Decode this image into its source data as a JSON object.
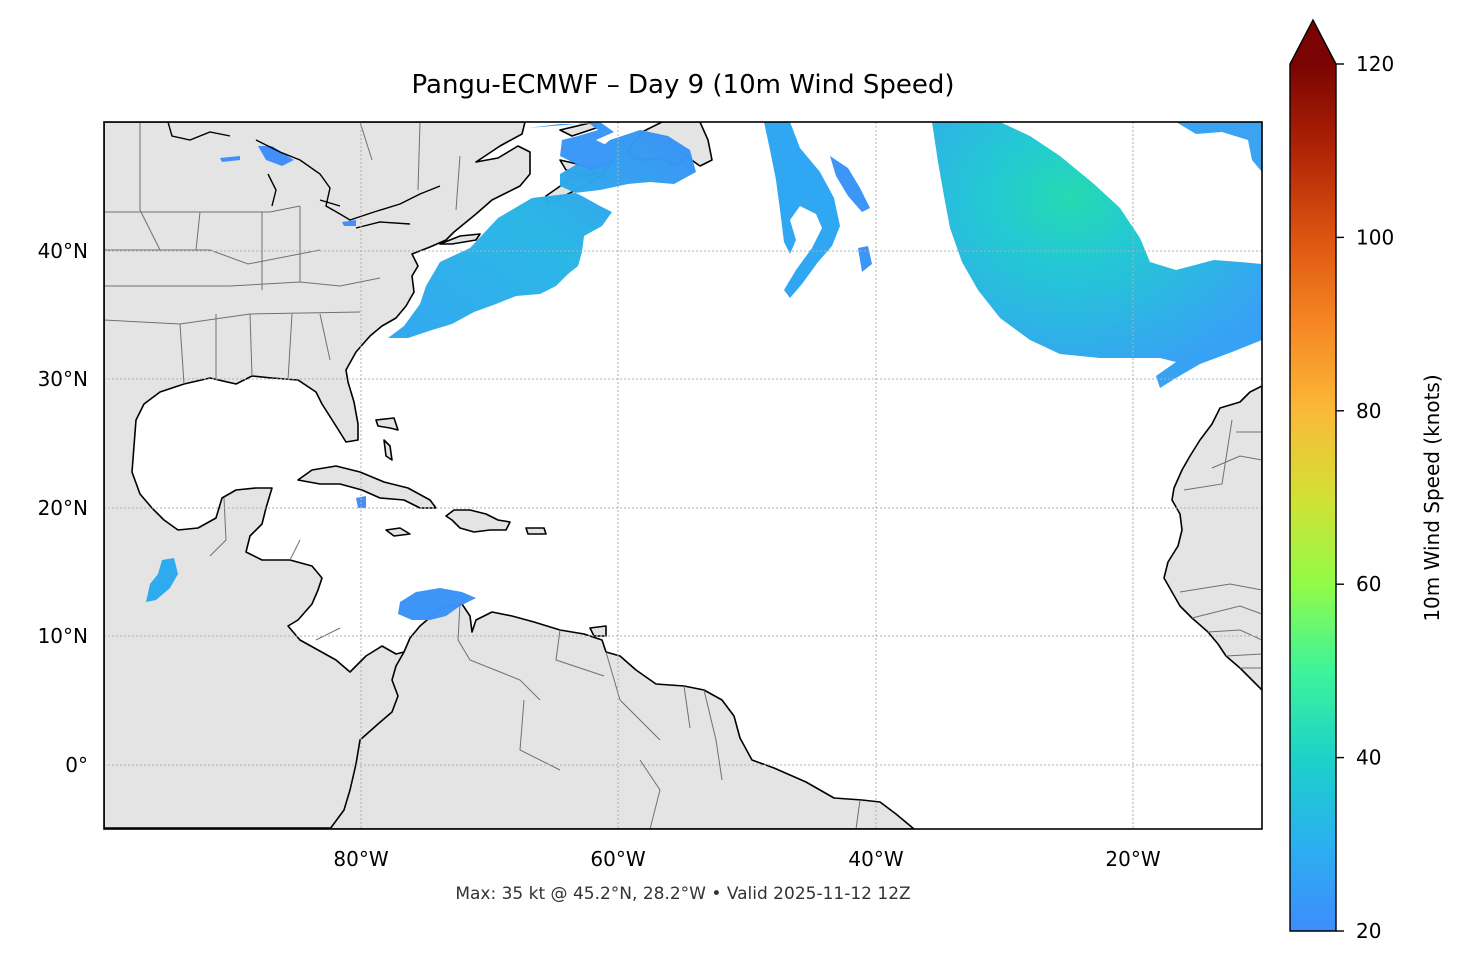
{
  "title": "Pangu-ECMWF – Day 9 (10m Wind Speed)",
  "footer": "Max: 35 kt @ 45.2°N, 28.2°W • Valid 2025-11-12 12Z",
  "map": {
    "extent": {
      "lon": [
        -100,
        -10
      ],
      "lat": [
        -5,
        50
      ]
    },
    "lon_ticks": [
      {
        "lon": -80,
        "label": "80°W"
      },
      {
        "lon": -60,
        "label": "60°W"
      },
      {
        "lon": -40,
        "label": "40°W"
      },
      {
        "lon": -20,
        "label": "20°W"
      }
    ],
    "lat_ticks": [
      {
        "lat": 40,
        "label": "40°N"
      },
      {
        "lat": 30,
        "label": "30°N"
      },
      {
        "lat": 20,
        "label": "20°N"
      },
      {
        "lat": 10,
        "label": "10°N"
      },
      {
        "lat": 0,
        "label": "0°"
      }
    ],
    "gridlines": true,
    "land_color": "#e4e4e4",
    "ocean_color": "#ffffff"
  },
  "colorbar": {
    "label": "10m Wind Speed (knots)",
    "min": 20,
    "max": 120,
    "extend": "max",
    "ticks": [
      {
        "value": 120,
        "label": "120"
      },
      {
        "value": 100,
        "label": "100"
      },
      {
        "value": 80,
        "label": "80"
      },
      {
        "value": 60,
        "label": "60"
      },
      {
        "value": 40,
        "label": "40"
      },
      {
        "value": 20,
        "label": "20"
      }
    ],
    "colormap": "turbo",
    "extend_color": "#7a0403"
  },
  "wind_regions": [
    {
      "name": "US northeast coast",
      "speed_kt": 26
    },
    {
      "name": "Newfoundland",
      "speed_kt": 25
    },
    {
      "name": "Central North Atlantic streak",
      "speed_kt": 24
    },
    {
      "name": "Northeast Atlantic maximum",
      "speed_kt": 35
    },
    {
      "name": "Eastern Atlantic arm",
      "speed_kt": 27
    },
    {
      "name": "Gulf of Tehuantepec",
      "speed_kt": 25
    },
    {
      "name": "Southern Caribbean",
      "speed_kt": 23
    }
  ]
}
